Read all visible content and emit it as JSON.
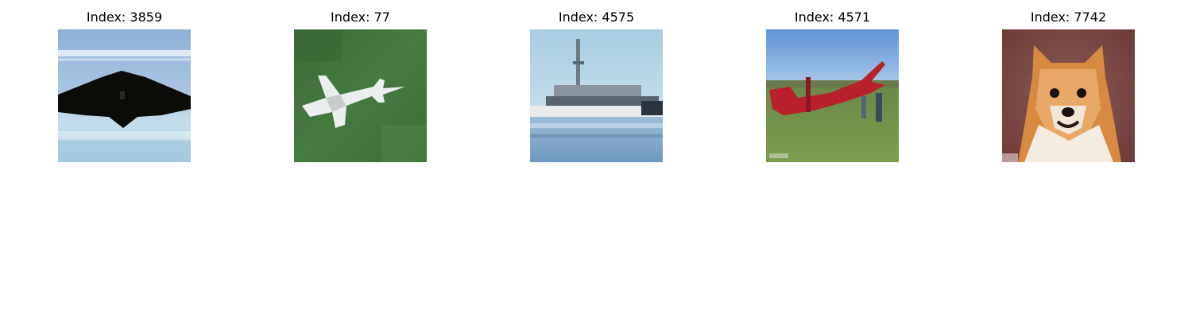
{
  "panels": [
    {
      "title": "Index: 3859",
      "subject": "stealth-bomber-in-sky"
    },
    {
      "title": "Index: 77",
      "subject": "fighter-jet-over-grass"
    },
    {
      "title": "Index: 4575",
      "subject": "ship-on-water"
    },
    {
      "title": "Index: 4571",
      "subject": "red-biplane-on-field"
    },
    {
      "title": "Index: 7742",
      "subject": "pomeranian-dog"
    }
  ]
}
